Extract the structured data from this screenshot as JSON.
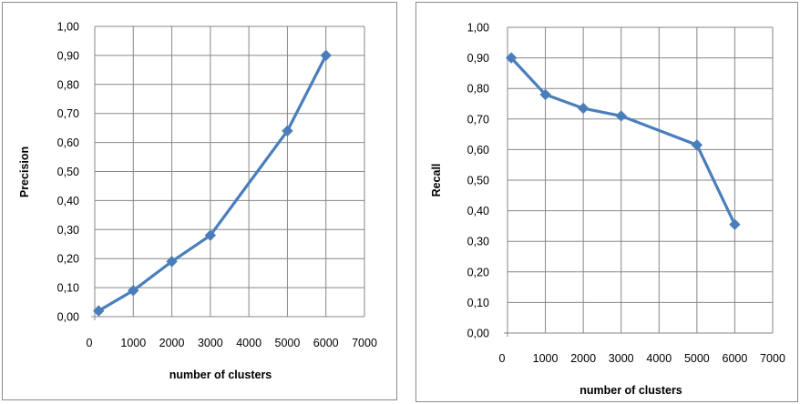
{
  "chart_data": [
    {
      "type": "line",
      "title": "",
      "xlabel": "number of clusters",
      "ylabel": "Precision",
      "xlim": [
        0,
        7000
      ],
      "ylim": [
        0,
        1
      ],
      "x_ticks": [
        "0",
        "1000",
        "2000",
        "3000",
        "4000",
        "5000",
        "6000",
        "7000"
      ],
      "y_ticks": [
        "0,00",
        "0,10",
        "0,20",
        "0,30",
        "0,40",
        "0,50",
        "0,60",
        "0,70",
        "0,80",
        "0,90",
        "1,00"
      ],
      "grid": true,
      "series_color": "#4a7ebb",
      "series": [
        {
          "x": [
            100,
            1000,
            2000,
            3000,
            5000,
            6000
          ],
          "values": [
            0.02,
            0.09,
            0.19,
            0.28,
            0.64,
            0.9
          ]
        }
      ]
    },
    {
      "type": "line",
      "title": "",
      "xlabel": "number of clusters",
      "ylabel": "Recall",
      "xlim": [
        0,
        7000
      ],
      "ylim": [
        0,
        1
      ],
      "x_ticks": [
        "0",
        "1000",
        "2000",
        "3000",
        "4000",
        "5000",
        "6000",
        "7000"
      ],
      "y_ticks": [
        "0,00",
        "0,10",
        "0,20",
        "0,30",
        "0,40",
        "0,50",
        "0,60",
        "0,70",
        "0,80",
        "0,90",
        "1,00"
      ],
      "grid": true,
      "series_color": "#4a7ebb",
      "series": [
        {
          "x": [
            100,
            1000,
            2000,
            3000,
            5000,
            6000
          ],
          "values": [
            0.9,
            0.78,
            0.735,
            0.71,
            0.615,
            0.355
          ]
        }
      ]
    }
  ]
}
